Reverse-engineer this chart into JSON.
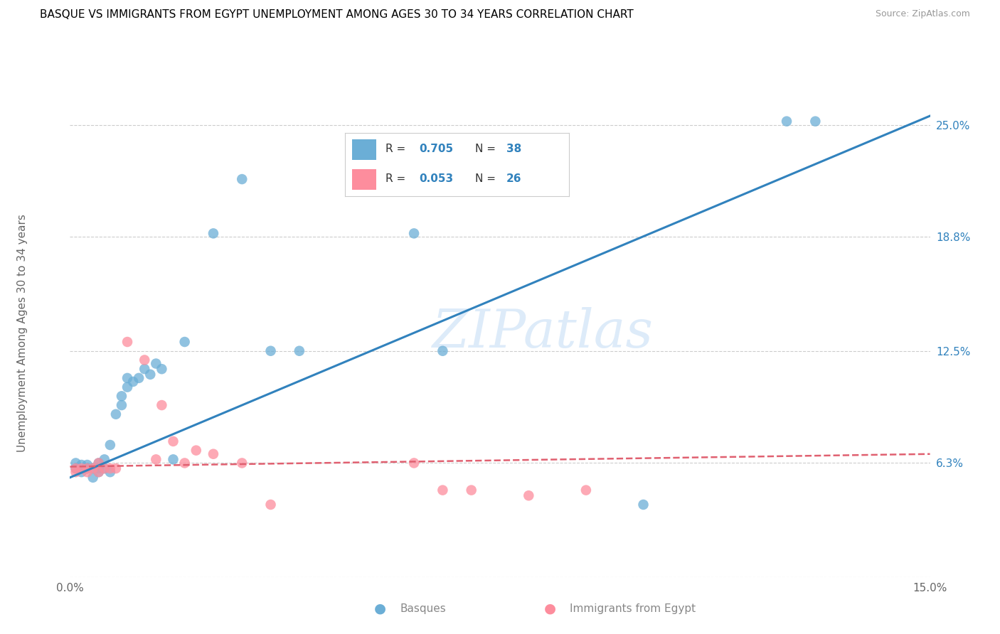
{
  "title": "BASQUE VS IMMIGRANTS FROM EGYPT UNEMPLOYMENT AMONG AGES 30 TO 34 YEARS CORRELATION CHART",
  "source": "Source: ZipAtlas.com",
  "xlabel_basque": "Basques",
  "xlabel_egypt": "Immigrants from Egypt",
  "ylabel": "Unemployment Among Ages 30 to 34 years",
  "xmin": 0.0,
  "xmax": 0.15,
  "ymin": 0.0,
  "ymax": 0.27,
  "yticks": [
    0.0,
    0.063,
    0.125,
    0.188,
    0.25
  ],
  "ytick_labels": [
    "",
    "6.3%",
    "12.5%",
    "18.8%",
    "25.0%"
  ],
  "xticks": [
    0.0,
    0.03,
    0.06,
    0.09,
    0.12,
    0.15
  ],
  "xtick_labels": [
    "0.0%",
    "",
    "",
    "",
    "",
    "15.0%"
  ],
  "basque_color": "#6baed6",
  "egypt_color": "#fd8d9d",
  "basque_R": 0.705,
  "basque_N": 38,
  "egypt_R": 0.053,
  "egypt_N": 26,
  "basque_line_color": "#3182bd",
  "egypt_line_color": "#e06070",
  "watermark": "ZIPatlas",
  "basque_x": [
    0.001,
    0.001,
    0.002,
    0.002,
    0.003,
    0.003,
    0.003,
    0.004,
    0.004,
    0.005,
    0.005,
    0.005,
    0.006,
    0.006,
    0.007,
    0.007,
    0.008,
    0.009,
    0.009,
    0.01,
    0.01,
    0.011,
    0.012,
    0.013,
    0.014,
    0.015,
    0.016,
    0.018,
    0.02,
    0.025,
    0.03,
    0.035,
    0.04,
    0.06,
    0.065,
    0.1,
    0.125,
    0.13
  ],
  "basque_y": [
    0.063,
    0.06,
    0.062,
    0.058,
    0.06,
    0.062,
    0.06,
    0.06,
    0.055,
    0.058,
    0.06,
    0.063,
    0.06,
    0.065,
    0.058,
    0.073,
    0.09,
    0.095,
    0.1,
    0.105,
    0.11,
    0.108,
    0.11,
    0.115,
    0.112,
    0.118,
    0.115,
    0.065,
    0.13,
    0.19,
    0.22,
    0.125,
    0.125,
    0.19,
    0.125,
    0.04,
    0.252,
    0.252
  ],
  "egypt_x": [
    0.001,
    0.001,
    0.002,
    0.003,
    0.003,
    0.004,
    0.005,
    0.005,
    0.006,
    0.007,
    0.008,
    0.01,
    0.013,
    0.015,
    0.016,
    0.018,
    0.02,
    0.022,
    0.025,
    0.03,
    0.06,
    0.065,
    0.07,
    0.08,
    0.09,
    0.035
  ],
  "egypt_y": [
    0.06,
    0.058,
    0.06,
    0.058,
    0.06,
    0.06,
    0.058,
    0.063,
    0.06,
    0.06,
    0.06,
    0.13,
    0.12,
    0.065,
    0.095,
    0.075,
    0.063,
    0.07,
    0.068,
    0.063,
    0.063,
    0.048,
    0.048,
    0.045,
    0.048,
    0.04
  ],
  "blue_line_x0": 0.0,
  "blue_line_y0": 0.055,
  "blue_line_x1": 0.15,
  "blue_line_y1": 0.255,
  "pink_line_x0": 0.0,
  "pink_line_y0": 0.061,
  "pink_line_x1": 0.15,
  "pink_line_y1": 0.068
}
